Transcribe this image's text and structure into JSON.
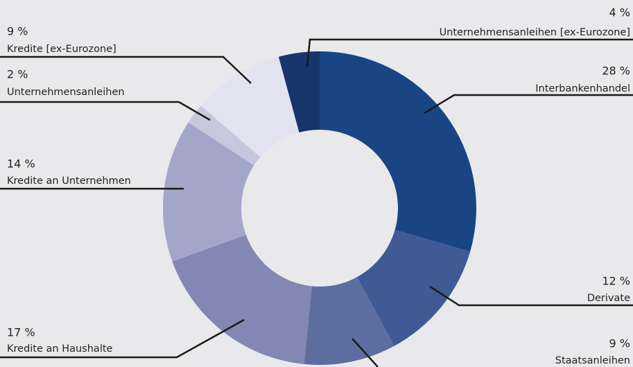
{
  "chart_data": {
    "type": "donut",
    "categories": [
      "Interbankenhandel",
      "Derivate",
      "Staatsanleihen",
      "Kredite an Haushalte",
      "Kredite an Unternehmen",
      "Unternehmensanleihen",
      "Kredite [ex-Eurozone]",
      "Unternehmensanleihen [ex-Eurozone]"
    ],
    "values": [
      28,
      12,
      9,
      17,
      14,
      2,
      9,
      4
    ],
    "value_labels": [
      "28 %",
      "12 %",
      "9 %",
      "17 %",
      "14 %",
      "2 %",
      "9 %",
      "4 %"
    ],
    "colors": [
      "#1a4585",
      "#3f5a95",
      "#5e6d9f",
      "#8287b3",
      "#a3a6c8",
      "#c6c8de",
      "#e2e2f1",
      "#17356b"
    ]
  }
}
